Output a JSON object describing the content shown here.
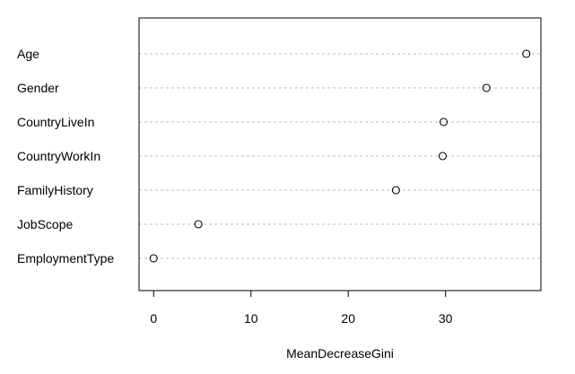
{
  "chart_data": {
    "type": "scatter",
    "title": "",
    "xlabel": "MeanDecreaseGini",
    "ylabel": "",
    "categories": [
      "Age",
      "Gender",
      "CountryLiveIn",
      "CountryWorkIn",
      "FamilyHistory",
      "JobScope",
      "EmploymentType"
    ],
    "values": [
      38.3,
      34.2,
      29.8,
      29.7,
      24.9,
      4.6,
      0.0
    ],
    "xlim": [
      -1.5,
      39.8
    ],
    "xticks": [
      0,
      10,
      20,
      30
    ],
    "xtick_labels": [
      "0",
      "10",
      "20",
      "30"
    ],
    "grid": "horizontal dotted",
    "marker": "open circle",
    "colors": {
      "point": "#000000",
      "grid": "#bebebe",
      "axis": "#000000"
    }
  }
}
